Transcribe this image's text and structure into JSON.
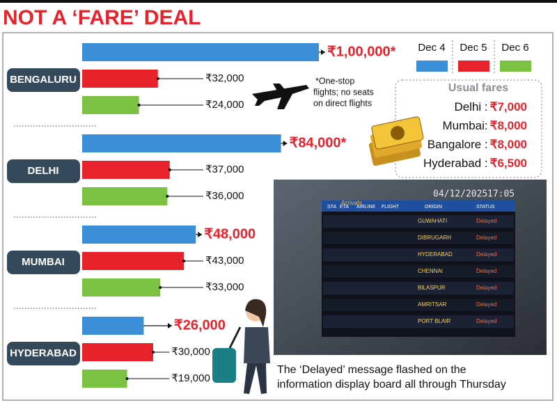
{
  "chart_data": {
    "type": "bar",
    "orientation": "horizontal",
    "title": "NOT A ‘FARE’ DEAL",
    "categories": [
      "BENGALURU",
      "DELHI",
      "MUMBAI",
      "HYDERABAD"
    ],
    "xlim": [
      0,
      100000
    ],
    "series": [
      {
        "name": "Dec 4",
        "color": "#3a8fd8",
        "values": [
          100000,
          84000,
          48000,
          26000
        ],
        "value_labels": [
          "₹1,00,000*",
          "₹84,000*",
          "₹48,000",
          "₹26,000"
        ]
      },
      {
        "name": "Dec 5",
        "color": "#e8222a",
        "values": [
          32000,
          37000,
          43000,
          30000
        ],
        "value_labels": [
          "₹32,000",
          "₹37,000",
          "₹43,000",
          "₹30,000"
        ]
      },
      {
        "name": "Dec 6",
        "color": "#7cc242",
        "values": [
          24000,
          36000,
          33000,
          19000
        ],
        "value_labels": [
          "₹24,000",
          "₹36,000",
          "₹33,000",
          "₹19,000"
        ]
      }
    ],
    "note": [
      "*One-stop",
      "flights; no seats",
      "on direct flights"
    ],
    "usual_fares": {
      "title": "Usual fares",
      "rows": [
        {
          "city": "Delhi :",
          "fare": "₹7,000"
        },
        {
          "city": "Mumbai:",
          "fare": "₹8,000"
        },
        {
          "city": "Bangalore :",
          "fare": "₹8,000"
        },
        {
          "city": "Hyderabad :",
          "fare": "₹6,500"
        }
      ]
    },
    "caption": [
      "The ‘Delayed’ message flashed on the",
      "information display board all through Thursday"
    ]
  },
  "photo": {
    "date": "04/12/2025",
    "time": "17:05",
    "board_title": "Arrivals",
    "header": [
      "STA",
      "ETA",
      "AIRLINE",
      "FLIGHT",
      "ORIGIN",
      "STATUS"
    ],
    "origins": [
      "GUWAHATI",
      "DIBRUGARH",
      "HYDERABAD",
      "CHENNAI",
      "BILASPUR",
      "AMRITSAR",
      "PORT BLAIR"
    ],
    "status": "Delayed"
  }
}
